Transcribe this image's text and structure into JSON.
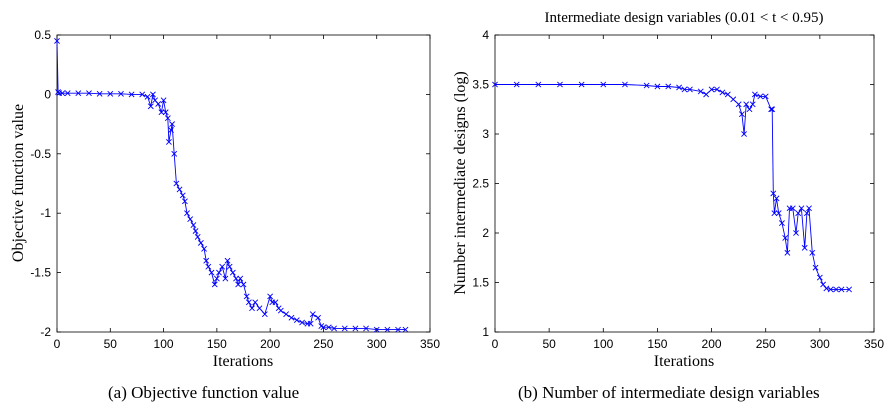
{
  "chart_data": [
    {
      "type": "line",
      "title": "",
      "xlabel": "Iterations",
      "ylabel": "Objective function value",
      "xlim": [
        0,
        350
      ],
      "ylim": [
        -2,
        0.5
      ],
      "xticks": [
        0,
        50,
        100,
        150,
        200,
        250,
        300,
        350
      ],
      "yticks": [
        -2,
        -1.5,
        -1,
        -0.5,
        0,
        0.5
      ],
      "yticklabels": [
        "-2",
        "-1.5",
        "-1",
        "-0.5",
        "0",
        "0.5"
      ],
      "marker": "x",
      "grid": false,
      "series": [
        {
          "x": [
            0,
            1,
            2,
            5,
            10,
            20,
            30,
            40,
            50,
            60,
            70,
            80,
            85,
            88,
            90,
            92,
            95,
            98,
            100,
            102,
            104,
            105,
            107,
            108,
            110,
            112,
            115,
            118,
            120,
            122,
            125,
            128,
            130,
            132,
            135,
            138,
            140,
            142,
            145,
            148,
            150,
            152,
            155,
            158,
            160,
            162,
            165,
            168,
            170,
            172,
            175,
            178,
            180,
            183,
            186,
            190,
            195,
            200,
            202,
            205,
            208,
            210,
            215,
            220,
            225,
            230,
            235,
            238,
            240,
            245,
            248,
            250,
            255,
            260,
            270,
            280,
            290,
            300,
            310,
            320,
            327
          ],
          "y": [
            0.45,
            0.02,
            0.01,
            0.01,
            0.01,
            0.01,
            0.01,
            0.005,
            0.005,
            0.005,
            0.0,
            0.0,
            -0.02,
            -0.1,
            0.0,
            -0.05,
            -0.08,
            -0.15,
            -0.05,
            -0.15,
            -0.2,
            -0.4,
            -0.3,
            -0.25,
            -0.5,
            -0.75,
            -0.8,
            -0.85,
            -0.9,
            -1.0,
            -1.05,
            -1.1,
            -1.15,
            -1.2,
            -1.25,
            -1.3,
            -1.4,
            -1.45,
            -1.5,
            -1.6,
            -1.55,
            -1.5,
            -1.45,
            -1.55,
            -1.4,
            -1.45,
            -1.5,
            -1.55,
            -1.6,
            -1.55,
            -1.6,
            -1.7,
            -1.75,
            -1.8,
            -1.75,
            -1.8,
            -1.85,
            -1.7,
            -1.75,
            -1.75,
            -1.8,
            -1.82,
            -1.85,
            -1.88,
            -1.9,
            -1.92,
            -1.93,
            -1.93,
            -1.85,
            -1.88,
            -1.95,
            -1.96,
            -1.96,
            -1.97,
            -1.97,
            -1.97,
            -1.97,
            -1.98,
            -1.98,
            -1.98,
            -1.98
          ]
        }
      ]
    },
    {
      "type": "line",
      "title": "Intermediate design variables (0.01 < t < 0.95)",
      "xlabel": "Iterations",
      "ylabel": "Number intermediate designs (log)",
      "xlim": [
        0,
        350
      ],
      "ylim": [
        1,
        4
      ],
      "xticks": [
        0,
        50,
        100,
        150,
        200,
        250,
        300,
        350
      ],
      "yticks": [
        1,
        1.5,
        2,
        2.5,
        3,
        3.5,
        4
      ],
      "yticklabels": [
        "1",
        "1.5",
        "2",
        "2.5",
        "3",
        "3.5",
        "4"
      ],
      "marker": "x",
      "grid": false,
      "series": [
        {
          "x": [
            0,
            20,
            40,
            60,
            80,
            100,
            120,
            140,
            150,
            160,
            170,
            175,
            180,
            190,
            195,
            200,
            205,
            210,
            215,
            220,
            225,
            228,
            230,
            232,
            235,
            238,
            240,
            245,
            250,
            255,
            256,
            257,
            258,
            260,
            262,
            265,
            268,
            270,
            272,
            275,
            278,
            280,
            283,
            286,
            288,
            290,
            293,
            296,
            300,
            303,
            306,
            310,
            315,
            320,
            327
          ],
          "y": [
            3.5,
            3.5,
            3.5,
            3.5,
            3.5,
            3.5,
            3.5,
            3.49,
            3.48,
            3.48,
            3.47,
            3.45,
            3.45,
            3.43,
            3.4,
            3.45,
            3.45,
            3.42,
            3.4,
            3.35,
            3.3,
            3.2,
            3.0,
            3.3,
            3.25,
            3.3,
            3.4,
            3.38,
            3.38,
            3.25,
            3.25,
            2.4,
            2.2,
            2.35,
            2.2,
            2.1,
            1.95,
            1.8,
            2.25,
            2.25,
            2.0,
            2.2,
            2.25,
            1.85,
            2.2,
            2.25,
            1.8,
            1.65,
            1.55,
            1.48,
            1.44,
            1.43,
            1.43,
            1.43,
            1.43
          ]
        }
      ]
    }
  ],
  "captions": {
    "a": "(a) Objective function value",
    "b": "(b) Number of intermediate design variables"
  },
  "colors": {
    "series": "#0000ff",
    "axis": "#000000",
    "background": "#ffffff"
  }
}
